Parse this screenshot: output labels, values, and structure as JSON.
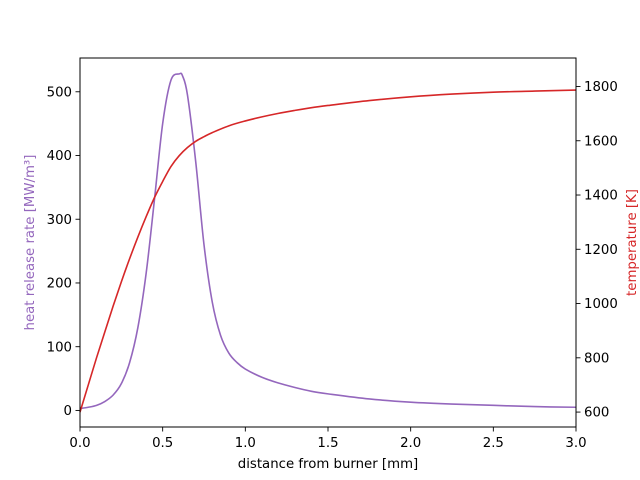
{
  "chart_data": {
    "type": "line",
    "title": "",
    "xlabel": "distance from burner [mm]",
    "xlim": [
      0.0,
      3.0
    ],
    "x_ticks": [
      "0.0",
      "0.5",
      "1.0",
      "1.5",
      "2.0",
      "2.5",
      "3.0"
    ],
    "left_axis": {
      "label": "heat release rate [MW/m³]",
      "color": "#9467bd",
      "ylim": [
        -26,
        553
      ],
      "ticks": [
        "0",
        "100",
        "200",
        "300",
        "400",
        "500"
      ]
    },
    "right_axis": {
      "label": "temperature [K]",
      "color": "#d62728",
      "ylim": [
        545,
        1905
      ],
      "ticks": [
        "600",
        "800",
        "1000",
        "1200",
        "1400",
        "1600",
        "1800"
      ]
    },
    "series": [
      {
        "axis": "left",
        "color": "#9467bd",
        "x": [
          0.0,
          0.05,
          0.1,
          0.15,
          0.2,
          0.25,
          0.3,
          0.35,
          0.4,
          0.45,
          0.5,
          0.55,
          0.6,
          0.62,
          0.65,
          0.7,
          0.75,
          0.8,
          0.85,
          0.9,
          0.95,
          1.0,
          1.1,
          1.2,
          1.3,
          1.4,
          1.5,
          1.75,
          2.0,
          2.25,
          2.5,
          2.75,
          3.0
        ],
        "y": [
          3,
          5,
          8,
          14,
          24,
          42,
          75,
          130,
          215,
          330,
          450,
          518,
          528,
          525,
          495,
          390,
          260,
          170,
          118,
          90,
          75,
          65,
          52,
          43,
          36,
          30,
          26,
          18,
          13,
          10,
          8,
          6,
          5
        ]
      },
      {
        "axis": "right",
        "color": "#d62728",
        "x": [
          0.0,
          0.05,
          0.1,
          0.15,
          0.2,
          0.25,
          0.3,
          0.35,
          0.4,
          0.45,
          0.5,
          0.55,
          0.6,
          0.65,
          0.7,
          0.75,
          0.8,
          0.9,
          1.0,
          1.1,
          1.2,
          1.3,
          1.4,
          1.5,
          1.75,
          2.0,
          2.25,
          2.5,
          2.75,
          3.0
        ],
        "y": [
          600,
          700,
          800,
          895,
          990,
          1080,
          1165,
          1245,
          1320,
          1390,
          1450,
          1505,
          1545,
          1575,
          1598,
          1615,
          1630,
          1655,
          1673,
          1688,
          1701,
          1712,
          1722,
          1730,
          1748,
          1762,
          1772,
          1779,
          1783,
          1787
        ]
      }
    ]
  }
}
